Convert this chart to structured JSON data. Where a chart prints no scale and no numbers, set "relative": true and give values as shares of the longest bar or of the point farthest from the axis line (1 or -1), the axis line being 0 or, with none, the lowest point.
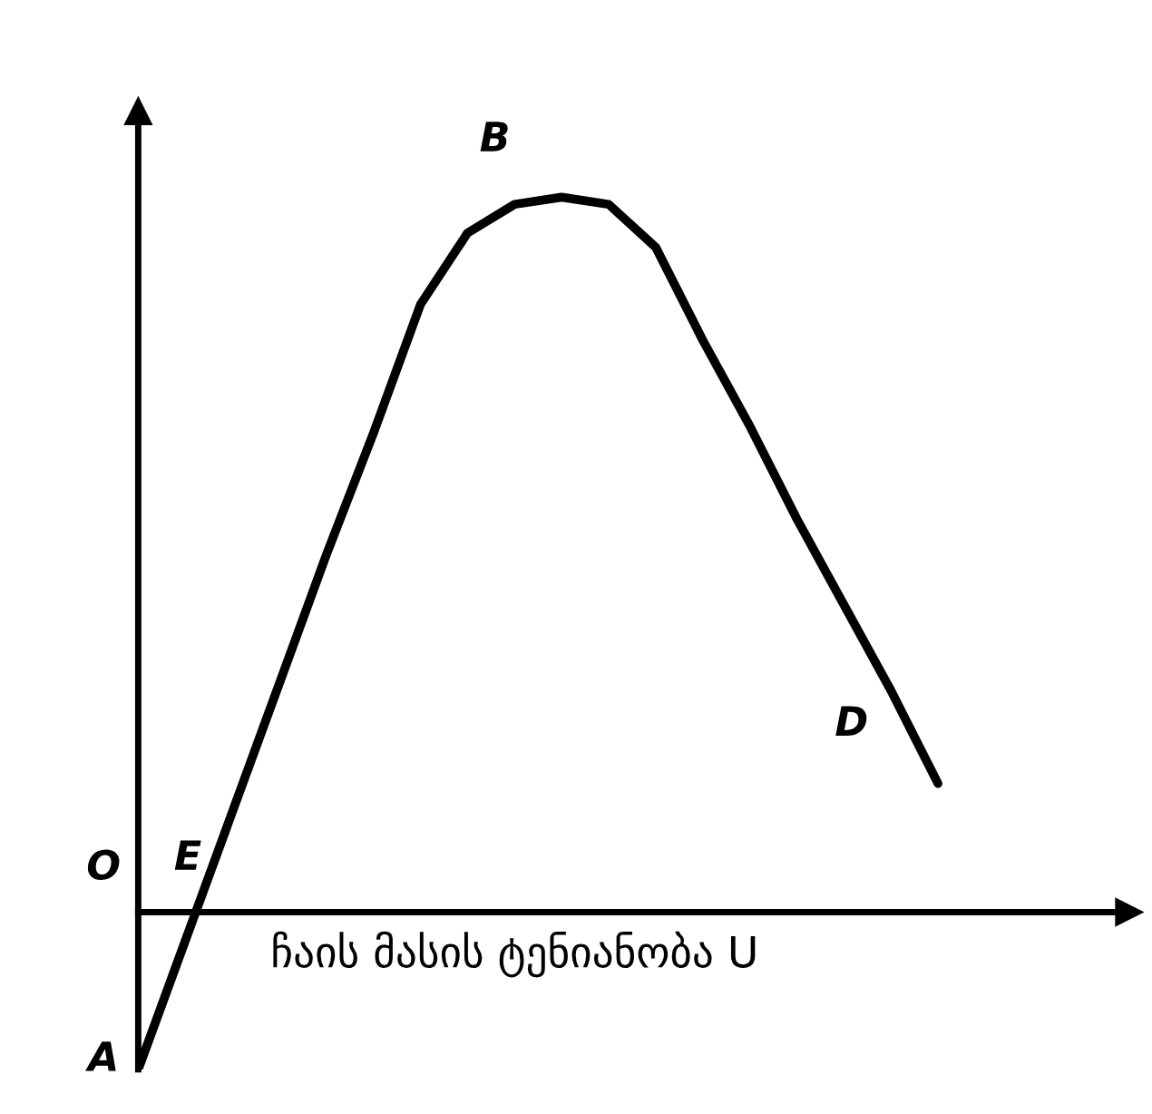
{
  "chart_data": {
    "type": "line",
    "relative": true,
    "xlabel": "ჩაის მასის ტენიანობა U",
    "color": "#000000",
    "marker": "none",
    "line_style": "solid",
    "legend": false,
    "categories": [
      null,
      null,
      null,
      null,
      null,
      null,
      null,
      null,
      null,
      null,
      null,
      null,
      null,
      null,
      null,
      null,
      null,
      null
    ],
    "values": [
      -0.22,
      -0.04,
      0.14,
      0.32,
      0.5,
      0.67,
      0.85,
      0.95,
      0.99,
      1.0,
      0.99,
      0.93,
      0.8,
      0.68,
      0.55,
      0.43,
      0.31,
      0.18
    ],
    "annotations": [
      "A",
      "E",
      "B",
      "D",
      "O"
    ]
  }
}
